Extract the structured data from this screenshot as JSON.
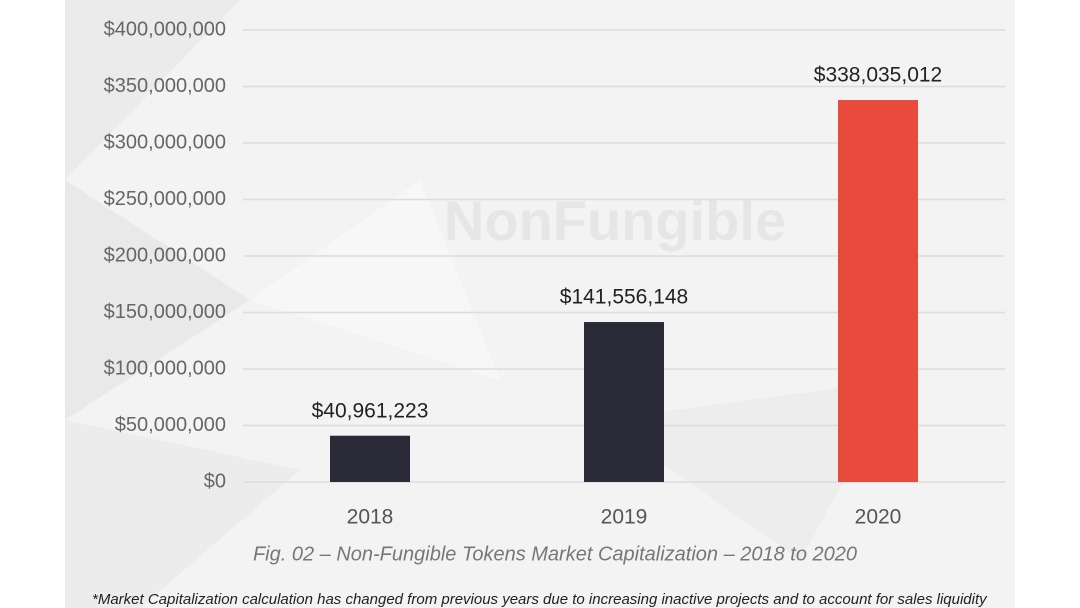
{
  "chart_data": {
    "type": "bar",
    "watermark": "NonFungible",
    "caption": "Fig. 02 – Non-Fungible Tokens Market Capitalization – 2018 to 2020",
    "footnote": "*Market Capitalization calculation has changed from previous years due to increasing inactive projects and to account for sales liquidity",
    "categories": [
      "2018",
      "2019",
      "2020"
    ],
    "values": [
      40961223,
      141556148,
      338035012
    ],
    "value_labels": [
      "$40,961,223",
      "$141,556,148",
      "$338,035,012"
    ],
    "colors": [
      "#2a2a38",
      "#2a2a38",
      "#e84a3c"
    ],
    "ylim": [
      0,
      400000000
    ],
    "yticks": [
      {
        "value": 0,
        "label": "$0"
      },
      {
        "value": 50000000,
        "label": "$50,000,000"
      },
      {
        "value": 100000000,
        "label": "$100,000,000"
      },
      {
        "value": 150000000,
        "label": "$150,000,000"
      },
      {
        "value": 200000000,
        "label": "$200,000,000"
      },
      {
        "value": 250000000,
        "label": "$250,000,000"
      },
      {
        "value": 300000000,
        "label": "$300,000,000"
      },
      {
        "value": 350000000,
        "label": "$350,000,000"
      },
      {
        "value": 400000000,
        "label": "$400,000,000"
      }
    ],
    "grid": true
  }
}
